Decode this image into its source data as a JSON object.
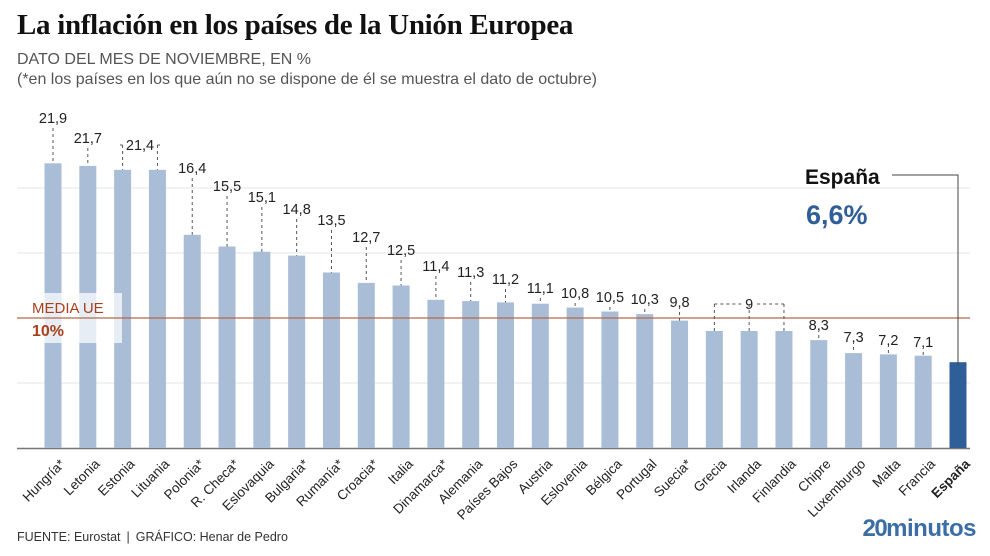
{
  "header": {
    "title": "La inflación en los países de la Unión Europea",
    "subtitle_line1": "DATO DEL MES DE NOVIEMBRE, EN %",
    "subtitle_line2": "(*en los países en los que aún no se dispone de él se muestra el dato de octubre)"
  },
  "footer": {
    "source": "FUENTE: Eurostat",
    "separator": "|",
    "credit": "GRÁFICO: Henar de Pedro",
    "brand_number": "20",
    "brand_word": "minutos"
  },
  "colors": {
    "bar": "#a9bdd6",
    "highlight_bar": "#2f5e99",
    "average_line": "#b5694a",
    "average_text": "#a8401c",
    "highlight_value": "#2f5e99",
    "gridline": "#e4e4e4",
    "axis": "#777777",
    "brand": "#3a6ea5"
  },
  "chart_data": {
    "type": "bar",
    "title": "La inflación en los países de la Unión Europea",
    "subtitle": "DATO DEL MES DE NOVIEMBRE, EN %",
    "xlabel": "",
    "ylabel": "",
    "ylim": [
      0,
      22
    ],
    "grid": true,
    "gridlines_at": [
      5,
      10,
      15,
      20
    ],
    "categories": [
      "Hungría*",
      "Letonia",
      "Estonia",
      "Lituania",
      "Polonia*",
      "R. Checa*",
      "Eslovaquia",
      "Bulgaria*",
      "Rumanía*",
      "Croacia*",
      "Italia",
      "Dinamarca*",
      "Alemania",
      "Países Bajos",
      "Austria",
      "Eslovenia",
      "Bélgica",
      "Portugal",
      "Suecia*",
      "Grecia",
      "Irlanda",
      "Finlandia",
      "Chipre",
      "Luxemburgo",
      "Malta",
      "Francia",
      "España"
    ],
    "values": [
      21.9,
      21.7,
      21.4,
      21.4,
      16.4,
      15.5,
      15.1,
      14.8,
      13.5,
      12.7,
      12.5,
      11.4,
      11.3,
      11.2,
      11.1,
      10.8,
      10.5,
      10.3,
      9.8,
      9,
      9,
      9,
      8.3,
      7.3,
      7.2,
      7.1,
      6.6
    ],
    "data_labels": [
      {
        "text": "21,9",
        "bars": [
          0
        ]
      },
      {
        "text": "21,7",
        "bars": [
          1
        ]
      },
      {
        "text": "21,4",
        "bars": [
          2,
          3
        ]
      },
      {
        "text": "16,4",
        "bars": [
          4
        ]
      },
      {
        "text": "15,5",
        "bars": [
          5
        ]
      },
      {
        "text": "15,1",
        "bars": [
          6
        ]
      },
      {
        "text": "14,8",
        "bars": [
          7
        ]
      },
      {
        "text": "13,5",
        "bars": [
          8
        ]
      },
      {
        "text": "12,7",
        "bars": [
          9
        ]
      },
      {
        "text": "12,5",
        "bars": [
          10
        ]
      },
      {
        "text": "11,4",
        "bars": [
          11
        ]
      },
      {
        "text": "11,3",
        "bars": [
          12
        ]
      },
      {
        "text": "11,2",
        "bars": [
          13
        ]
      },
      {
        "text": "11,1",
        "bars": [
          14
        ]
      },
      {
        "text": "10,8",
        "bars": [
          15
        ]
      },
      {
        "text": "10,5",
        "bars": [
          16
        ]
      },
      {
        "text": "10,3",
        "bars": [
          17
        ]
      },
      {
        "text": "9,8",
        "bars": [
          18
        ]
      },
      {
        "text": "9",
        "bars": [
          19,
          20,
          21
        ]
      },
      {
        "text": "8,3",
        "bars": [
          22
        ]
      },
      {
        "text": "7,3",
        "bars": [
          23
        ]
      },
      {
        "text": "7,2",
        "bars": [
          24
        ]
      },
      {
        "text": "7,1",
        "bars": [
          25
        ]
      }
    ],
    "highlight": {
      "category": "España",
      "label": "España",
      "value_text": "6,6%"
    },
    "average": {
      "value": 10,
      "label": "MEDIA UE",
      "value_text": "10%"
    },
    "legend": "none"
  }
}
